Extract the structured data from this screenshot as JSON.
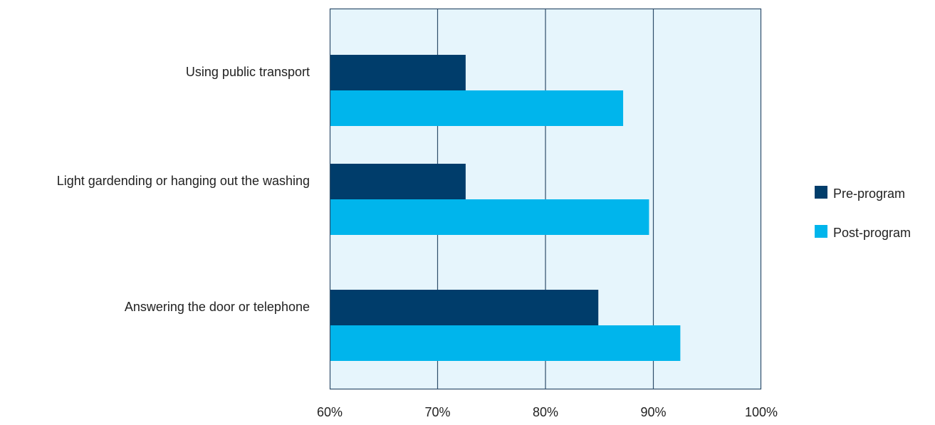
{
  "chart_data": {
    "type": "bar",
    "orientation": "horizontal",
    "categories": [
      "Using public transport",
      "Light gardending or hanging out the washing",
      "Answering the door or telephone"
    ],
    "series": [
      {
        "name": "Pre-program",
        "values": [
          72.6,
          72.6,
          84.9
        ],
        "color": "#003d6b"
      },
      {
        "name": "Post-program",
        "values": [
          87.2,
          89.6,
          92.5
        ],
        "color": "#00b5ec"
      }
    ],
    "xlim": [
      60,
      100
    ],
    "xticks": [
      60,
      70,
      80,
      90,
      100
    ],
    "tick_labels": [
      "60%",
      "70%",
      "80%",
      "90%",
      "100%"
    ],
    "grid": true,
    "legend_position": "right",
    "plot_background": "#e6f5fc",
    "axis_color": "#2f4e6b"
  }
}
